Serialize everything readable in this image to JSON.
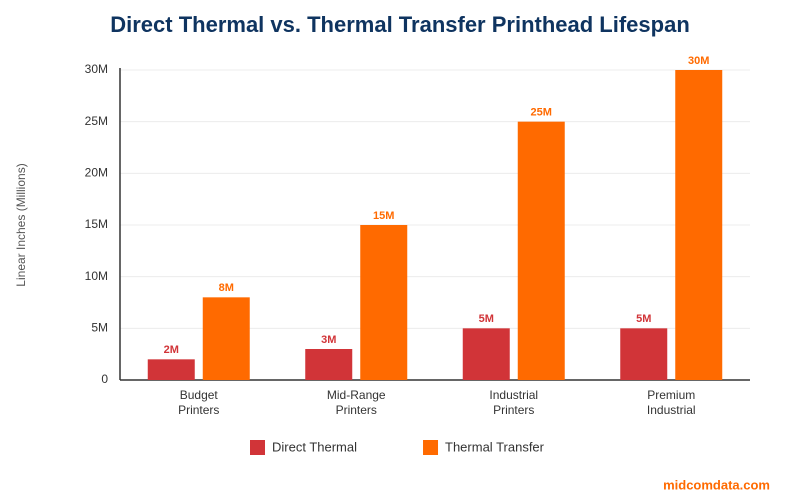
{
  "chart_data": {
    "type": "bar",
    "title": "Direct Thermal vs. Thermal Transfer Printhead Lifespan",
    "y_label": "Linear Inches (Millions)",
    "categories": [
      "Budget Printers",
      "Mid-Range Printers",
      "Industrial Printers",
      "Premium Industrial"
    ],
    "series": [
      {
        "name": "Direct Thermal",
        "color": "#d13438",
        "values": [
          2,
          3,
          5,
          5
        ],
        "value_labels": [
          "2M",
          "3M",
          "5M",
          "5M"
        ]
      },
      {
        "name": "Thermal Transfer",
        "color": "#ff6a00",
        "values": [
          8,
          15,
          25,
          30
        ],
        "value_labels": [
          "8M",
          "15M",
          "25M",
          "30M"
        ]
      }
    ],
    "ylim": [
      0,
      30
    ],
    "yticks": [
      0,
      {
        "value": 5,
        "label": "5M"
      },
      {
        "value": 10,
        "label": "10M"
      },
      {
        "value": 15,
        "label": "15M"
      },
      {
        "value": 20,
        "label": "20M"
      },
      {
        "value": 25,
        "label": "25M"
      },
      {
        "value": 30,
        "label": "30M"
      }
    ],
    "grid": true,
    "legend": "bottom",
    "source": "midcomdata.com"
  }
}
